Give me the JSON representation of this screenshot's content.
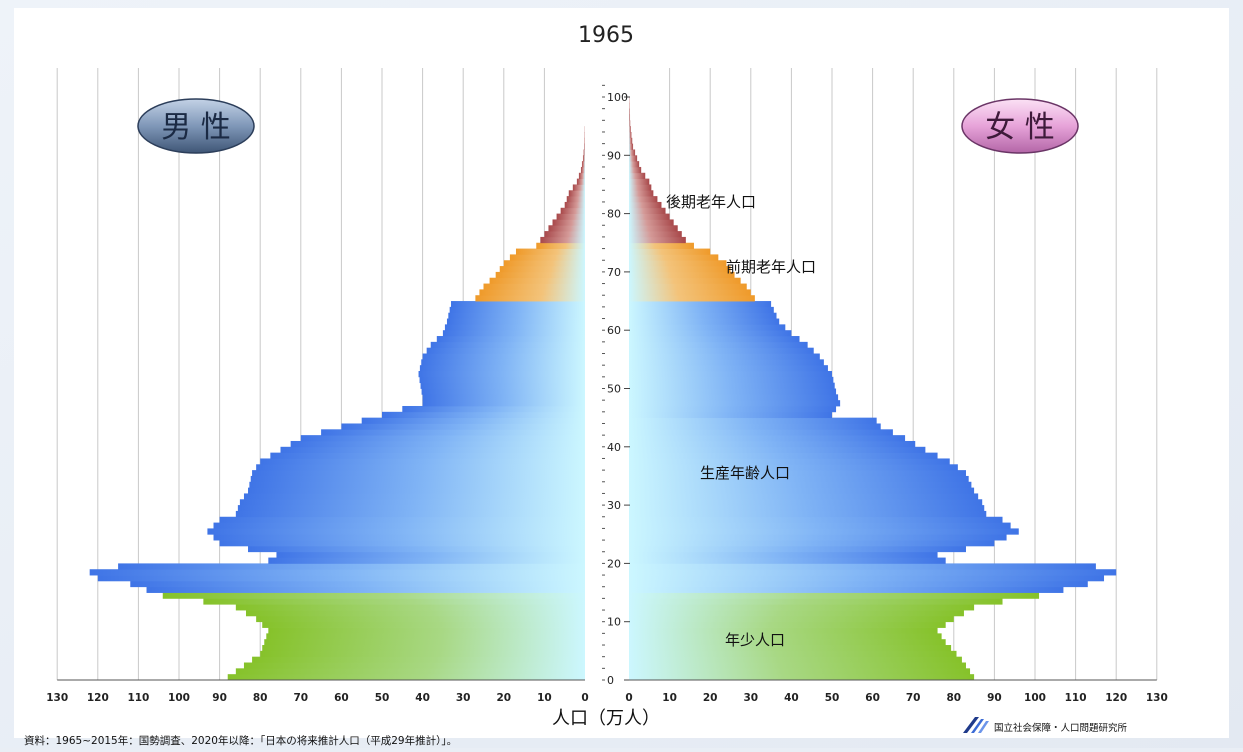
{
  "chart_data": {
    "type": "bar",
    "subtype": "population-pyramid",
    "title": "1965",
    "xlabel": "人口（万人）",
    "ylabel": "",
    "orientation": "horizontal",
    "xlim": [
      0,
      130
    ],
    "ylim": [
      0,
      105
    ],
    "x_ticks": [
      0,
      10,
      20,
      30,
      40,
      50,
      60,
      70,
      80,
      90,
      100,
      110,
      120,
      130
    ],
    "y_ticks": [
      0,
      10,
      20,
      30,
      40,
      50,
      60,
      70,
      80,
      90,
      100
    ],
    "grid": true,
    "badges": {
      "male": "男 性",
      "female": "女 性"
    },
    "age_groups": [
      {
        "label": "年少人口",
        "from": 0,
        "to": 14,
        "color": "#86c22a"
      },
      {
        "label": "生産年齢人口",
        "from": 15,
        "to": 64,
        "color": "#3f74e6"
      },
      {
        "label": "前期老年人口",
        "from": 65,
        "to": 74,
        "color": "#ef9a2a"
      },
      {
        "label": "後期老年人口",
        "from": 75,
        "to": 100,
        "color": "#a8484a"
      }
    ],
    "age_labels_text": {
      "young": "年少人口",
      "working": "生産年齢人口",
      "early_old": "前期老年人口",
      "late_old": "後期老年人口"
    },
    "male_breaks": [
      [
        0,
        88
      ],
      [
        4,
        80
      ],
      [
        8,
        78
      ],
      [
        10,
        81
      ],
      [
        12,
        86
      ],
      [
        13,
        94
      ],
      [
        14,
        104
      ],
      [
        15,
        108
      ],
      [
        16,
        112
      ],
      [
        17,
        120
      ],
      [
        18,
        122
      ],
      [
        19,
        115
      ],
      [
        20,
        78
      ],
      [
        21,
        76
      ],
      [
        23,
        90
      ],
      [
        25,
        93
      ],
      [
        27,
        90
      ],
      [
        28,
        86
      ],
      [
        30,
        85
      ],
      [
        32,
        83
      ],
      [
        35,
        82
      ],
      [
        37,
        80
      ],
      [
        39,
        75
      ],
      [
        41,
        70
      ],
      [
        43,
        60
      ],
      [
        45,
        50
      ],
      [
        46,
        45
      ],
      [
        47,
        40
      ],
      [
        48,
        40
      ],
      [
        52,
        41
      ],
      [
        55,
        40
      ],
      [
        57,
        38
      ],
      [
        59,
        35
      ],
      [
        61,
        34
      ],
      [
        64,
        33
      ],
      [
        65,
        27
      ],
      [
        67,
        25
      ],
      [
        69,
        22
      ],
      [
        71,
        20
      ],
      [
        73,
        17
      ],
      [
        74,
        12
      ],
      [
        75,
        11
      ],
      [
        77,
        9
      ],
      [
        79,
        7
      ],
      [
        81,
        5
      ],
      [
        83,
        4
      ],
      [
        85,
        2
      ],
      [
        87,
        1
      ],
      [
        89,
        0.5
      ],
      [
        91,
        0.2
      ],
      [
        93,
        0.1
      ],
      [
        95,
        0
      ]
    ],
    "female_breaks": [
      [
        0,
        85
      ],
      [
        3,
        82
      ],
      [
        6,
        78
      ],
      [
        8,
        76
      ],
      [
        10,
        80
      ],
      [
        12,
        85
      ],
      [
        13,
        92
      ],
      [
        14,
        101
      ],
      [
        15,
        107
      ],
      [
        16,
        113
      ],
      [
        17,
        117
      ],
      [
        18,
        120
      ],
      [
        19,
        115
      ],
      [
        20,
        78
      ],
      [
        21,
        76
      ],
      [
        23,
        90
      ],
      [
        25,
        96
      ],
      [
        27,
        92
      ],
      [
        28,
        88
      ],
      [
        30,
        87
      ],
      [
        32,
        85
      ],
      [
        35,
        83
      ],
      [
        37,
        79
      ],
      [
        39,
        73
      ],
      [
        41,
        68
      ],
      [
        43,
        62
      ],
      [
        44,
        61
      ],
      [
        45,
        50
      ],
      [
        47,
        52
      ],
      [
        49,
        51
      ],
      [
        52,
        50
      ],
      [
        55,
        47
      ],
      [
        57,
        44
      ],
      [
        59,
        40
      ],
      [
        61,
        37
      ],
      [
        64,
        35
      ],
      [
        65,
        31
      ],
      [
        67,
        29
      ],
      [
        69,
        26
      ],
      [
        71,
        24
      ],
      [
        73,
        20
      ],
      [
        74,
        16
      ],
      [
        75,
        14
      ],
      [
        77,
        12
      ],
      [
        79,
        10
      ],
      [
        81,
        8
      ],
      [
        83,
        6
      ],
      [
        85,
        5
      ],
      [
        87,
        3
      ],
      [
        89,
        2
      ],
      [
        91,
        1
      ],
      [
        93,
        0.6
      ],
      [
        95,
        0.3
      ],
      [
        97,
        0.2
      ],
      [
        100,
        0
      ]
    ],
    "footnote": "資料：1965~2015年：国勢調査、2020年以降：「日本の将来推計人口（平成29年推計）」。",
    "source_org": "国立社会保障・人口問題研究所"
  }
}
